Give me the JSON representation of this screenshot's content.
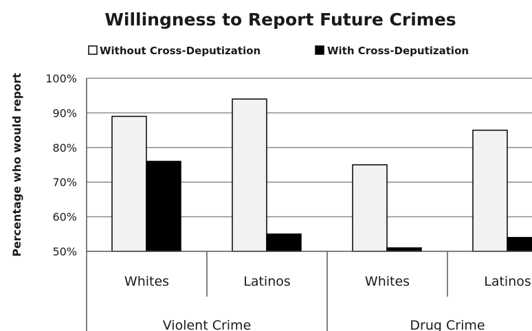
{
  "chart_data": {
    "type": "bar",
    "title": "Willingness to Report Future Crimes",
    "ylabel": "Percentage who would report",
    "ylim": [
      50,
      100
    ],
    "ytick_labels": [
      "50%",
      "60%",
      "70%",
      "80%",
      "90%",
      "100%"
    ],
    "yticks": [
      50,
      60,
      70,
      80,
      90,
      100
    ],
    "grid": true,
    "legend_position": "top",
    "categories": [
      "Whites",
      "Latinos",
      "Whites",
      "Latinos"
    ],
    "groups": [
      {
        "label": "Violent Crime",
        "categories": [
          0,
          1
        ]
      },
      {
        "label": "Drug Crime",
        "categories": [
          2,
          3
        ]
      }
    ],
    "series": [
      {
        "name": "Without Cross-Deputization",
        "color": "#f2f2f2",
        "values": [
          89,
          94,
          75,
          85
        ]
      },
      {
        "name": "With Cross-Deputization",
        "color": "#000000",
        "values": [
          76,
          55,
          51,
          54
        ]
      }
    ]
  }
}
